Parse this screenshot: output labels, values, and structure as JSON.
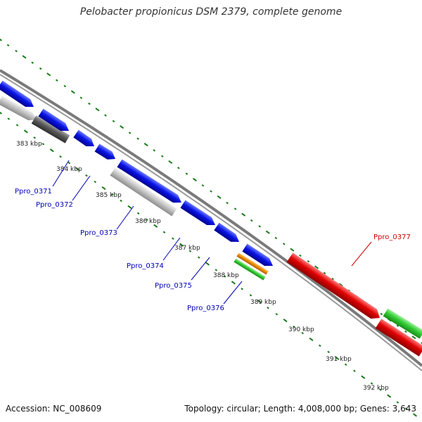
{
  "header": {
    "title": "Pelobacter propionicus DSM 2379, complete genome"
  },
  "footer": {
    "accession": "Accession: NC_008609",
    "summary": "Topology: circular; Length: 4,008,000 bp; Genes: 3,643"
  },
  "colors": {
    "backbone": "#7a7a7a",
    "tick": "#1a7a1a",
    "gene_blue": "#0a14e6",
    "gene_red": "#e00000",
    "gene_green": "#33cc33",
    "gene_orange": "#f28c00",
    "gene_lightgray": "#c4c4c4",
    "gene_darkgray": "#5a5a5a",
    "label_blue": "#0000b4",
    "label_red": "#cc0000"
  },
  "scale": {
    "unit": "kbp",
    "tick_labels": [
      "383 kbp",
      "384 kbp",
      "385 kbp",
      "386 kbp",
      "387 kbp",
      "388 kbp",
      "389 kbp",
      "390 kbp",
      "391 kbp",
      "392 kbp"
    ]
  },
  "genes": [
    {
      "label": "Ppro_0371",
      "color": "label_blue"
    },
    {
      "label": "Ppro_0372",
      "color": "label_blue"
    },
    {
      "label": "Ppro_0373",
      "color": "label_blue"
    },
    {
      "label": "Ppro_0374",
      "color": "label_blue"
    },
    {
      "label": "Ppro_0375",
      "color": "label_blue"
    },
    {
      "label": "Ppro_0376",
      "color": "label_blue"
    },
    {
      "label": "Ppro_0377",
      "color": "label_red"
    }
  ]
}
